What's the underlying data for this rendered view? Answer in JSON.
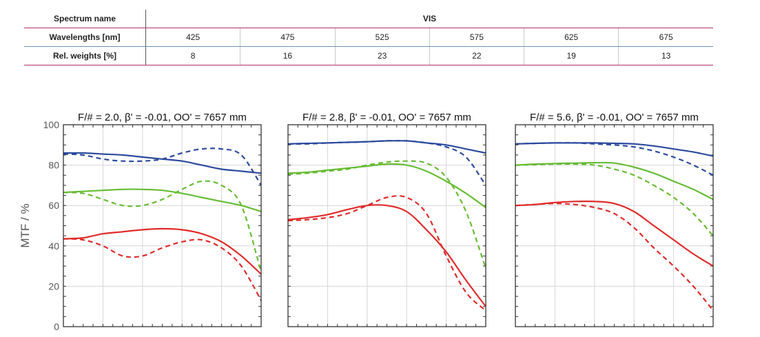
{
  "table": {
    "spectrum_label": "Spectrum name",
    "spectrum_value": "VIS",
    "wavelengths_label": "Wavelengths [nm]",
    "wavelengths": [
      "425",
      "475",
      "525",
      "575",
      "625",
      "675"
    ],
    "weights_label": "Rel. weights [%]",
    "weights": [
      "8",
      "16",
      "23",
      "22",
      "19",
      "13"
    ]
  },
  "chart_data": {
    "type": "line",
    "ylabel": "MTF / %",
    "ylim": [
      0,
      100
    ],
    "yticks": [
      0,
      20,
      40,
      60,
      80,
      100
    ],
    "xlim": [
      0,
      1
    ],
    "grid": true,
    "colors": {
      "blue": "#2b4a9e",
      "green": "#66bb33",
      "red": "#e02a2a"
    },
    "panels": [
      {
        "title": "F/# = 2.0, β' = -0.01, OO' = 7657 mm",
        "x": [
          0,
          0.1,
          0.2,
          0.3,
          0.4,
          0.5,
          0.6,
          0.7,
          0.8,
          0.9,
          1.0
        ],
        "series": [
          {
            "color": "blue",
            "style": "solid",
            "values": [
              86,
              86,
              85.5,
              85,
              84,
              83,
              82,
              80,
              78,
              77,
              76
            ]
          },
          {
            "color": "blue",
            "style": "dashed",
            "values": [
              85.5,
              85,
              83,
              82,
              82,
              83,
              86,
              88,
              88,
              85,
              70
            ]
          },
          {
            "color": "green",
            "style": "solid",
            "values": [
              66.5,
              67,
              67.5,
              68,
              68,
              67.5,
              66,
              64,
              62,
              60,
              57
            ]
          },
          {
            "color": "green",
            "style": "dashed",
            "values": [
              66.5,
              66,
              63,
              60,
              60,
              63,
              68,
              72,
              70,
              60,
              27
            ]
          },
          {
            "color": "red",
            "style": "solid",
            "values": [
              43.5,
              44,
              46,
              47,
              48,
              48.5,
              48,
              46,
              42,
              35,
              26
            ]
          },
          {
            "color": "red",
            "style": "dashed",
            "values": [
              43.5,
              43,
              40,
              35,
              35,
              39,
              42,
              43,
              39,
              30,
              13
            ]
          }
        ]
      },
      {
        "title": "F/# = 2.8, β' = -0.01, OO' = 7657 mm",
        "x": [
          0,
          0.1,
          0.2,
          0.3,
          0.4,
          0.5,
          0.6,
          0.7,
          0.8,
          0.9,
          1.0
        ],
        "series": [
          {
            "color": "blue",
            "style": "solid",
            "values": [
              90.5,
              90.8,
              91,
              91.3,
              91.6,
              92,
              92,
              91,
              90,
              88,
              86
            ]
          },
          {
            "color": "blue",
            "style": "dashed",
            "values": [
              90.5,
              90.5,
              91,
              91.3,
              91.6,
              92,
              92,
              91,
              89,
              84,
              70
            ]
          },
          {
            "color": "green",
            "style": "solid",
            "values": [
              76,
              76.5,
              77.5,
              78.5,
              79.5,
              80.5,
              80,
              77,
              72,
              66,
              59
            ]
          },
          {
            "color": "green",
            "style": "dashed",
            "values": [
              75.5,
              76,
              77,
              78,
              80,
              81.5,
              82,
              81,
              74,
              57,
              29
            ]
          },
          {
            "color": "red",
            "style": "solid",
            "values": [
              53,
              54,
              55.5,
              58,
              60,
              60,
              57,
              48,
              37,
              23,
              10
            ]
          },
          {
            "color": "red",
            "style": "dashed",
            "values": [
              52.5,
              53,
              54,
              56,
              60,
              64,
              64,
              56,
              35,
              17,
              8
            ]
          }
        ]
      },
      {
        "title": "F/# = 5.6, β' = -0.01, OO' = 7657 mm",
        "x": [
          0,
          0.1,
          0.2,
          0.3,
          0.4,
          0.5,
          0.6,
          0.7,
          0.8,
          0.9,
          1.0
        ],
        "series": [
          {
            "color": "blue",
            "style": "solid",
            "values": [
              90.5,
              90.8,
              91,
              91,
              91,
              90.8,
              90.5,
              89.5,
              88,
              86.5,
              84.5
            ]
          },
          {
            "color": "blue",
            "style": "dashed",
            "values": [
              90.5,
              90.8,
              91,
              91,
              90.5,
              90,
              89,
              87,
              84,
              80,
              75
            ]
          },
          {
            "color": "green",
            "style": "solid",
            "values": [
              80,
              80.5,
              80.8,
              81,
              81.2,
              81,
              79,
              76,
              72,
              68,
              63
            ]
          },
          {
            "color": "green",
            "style": "dashed",
            "values": [
              80,
              80.2,
              80.5,
              80.5,
              80,
              78,
              75,
              70,
              64,
              56,
              45
            ]
          },
          {
            "color": "red",
            "style": "solid",
            "values": [
              60,
              60.5,
              61.5,
              62,
              62,
              61,
              57,
              50,
              43,
              36,
              30
            ]
          },
          {
            "color": "red",
            "style": "dashed",
            "values": [
              60,
              60.5,
              61,
              60.5,
              59,
              56,
              49,
              39,
              30,
              20,
              8
            ]
          }
        ]
      }
    ]
  }
}
